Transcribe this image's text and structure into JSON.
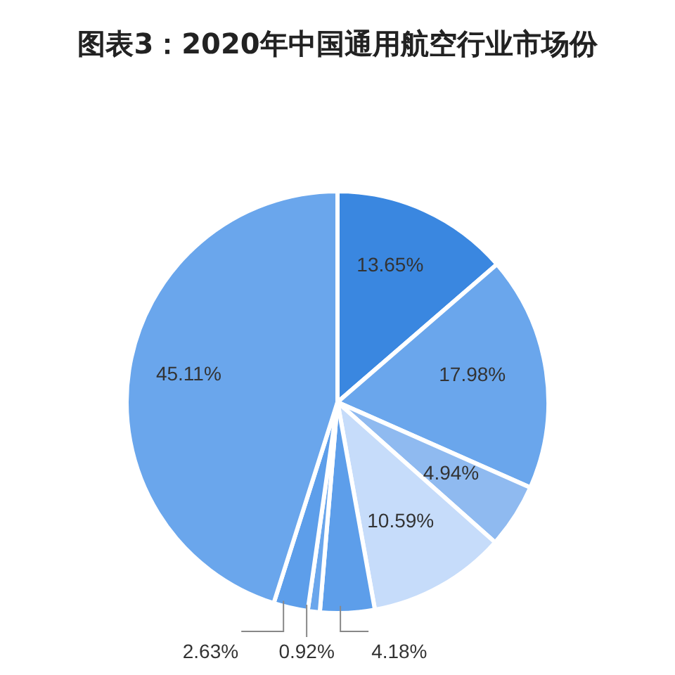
{
  "chart_data": {
    "type": "pie",
    "title": "图表3：2020年中国通用航空行业市场份",
    "categories": [
      null,
      null,
      null,
      null,
      null,
      null,
      null,
      null
    ],
    "values": [
      13.65,
      17.98,
      4.94,
      10.59,
      4.18,
      0.92,
      2.63,
      45.11
    ],
    "colors": [
      "#3a87e0",
      "#6aa6ec",
      "#8fbaf0",
      "#c6dcfa",
      "#5d9eea",
      "#6aa6ec",
      "#5d9eea",
      "#6aa6ec"
    ],
    "value_labels": [
      "13.65%",
      "17.98%",
      "4.94%",
      "10.59%",
      "4.18%",
      "0.92%",
      "2.63%",
      "45.11%"
    ],
    "legend": false
  }
}
